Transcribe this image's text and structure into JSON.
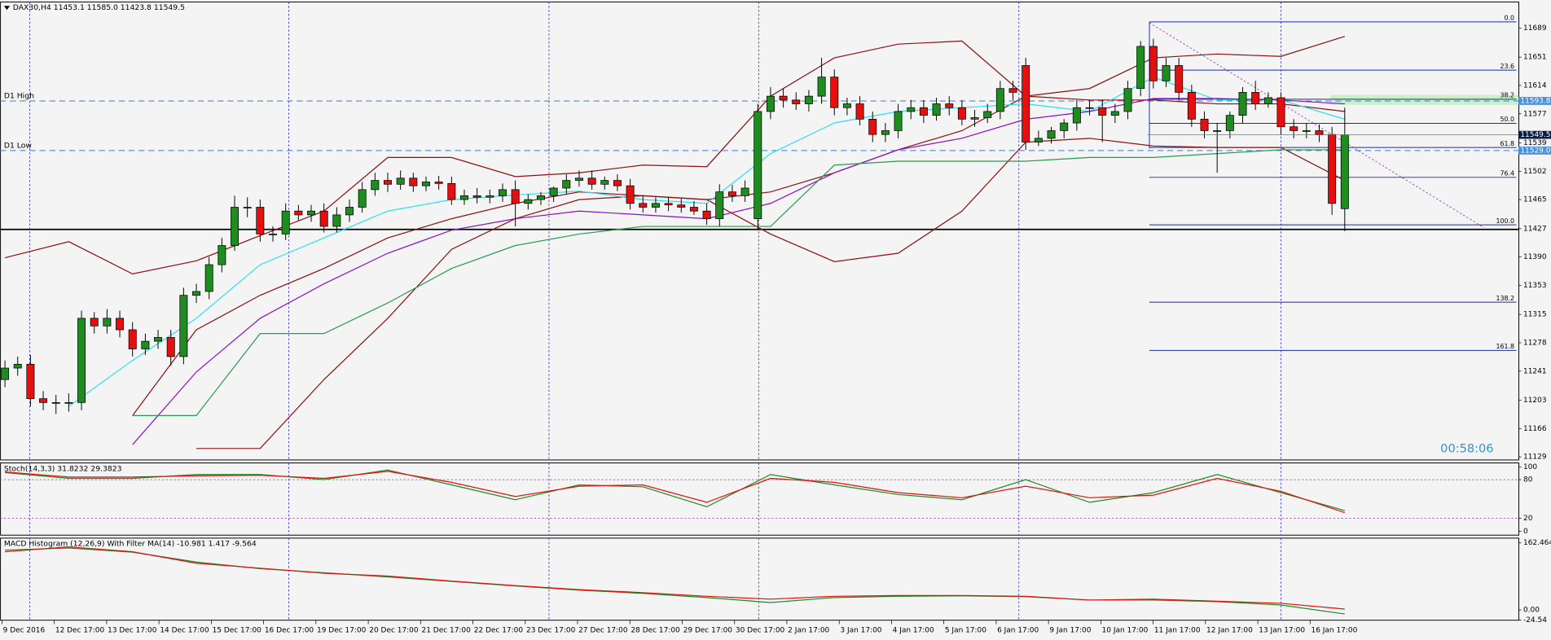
{
  "chart_data": [
    {
      "type": "candlestick",
      "title": "DAX30,H4  11453.1 11585.0 11423.8 11549.5",
      "ylim": [
        11125,
        11723
      ],
      "yticks": [
        11689,
        11651,
        11614,
        11577,
        11539,
        11502,
        11465,
        11427,
        11390,
        11353,
        11315,
        11278,
        11241,
        11203,
        11166,
        11129
      ],
      "up_color": "#1e8c1e",
      "down_color": "#e41010",
      "open": [
        11230,
        11245,
        11250,
        11205,
        11200,
        11200,
        11200,
        11310,
        11300,
        11310,
        11295,
        11270,
        11280,
        11285,
        11260,
        11340,
        11345,
        11380,
        11405,
        11455,
        11455,
        11420,
        11420,
        11450,
        11445,
        11450,
        11430,
        11445,
        11455,
        11478,
        11490,
        11485,
        11493,
        11483,
        11488,
        11486,
        11465,
        11470,
        11468,
        11470,
        11478,
        11460,
        11465,
        11470,
        11480,
        11490,
        11493,
        11485,
        11490,
        11483,
        11460,
        11455,
        11460,
        11458,
        11455,
        11450,
        11440,
        11475,
        11470,
        11440,
        11580,
        11600,
        11595,
        11590,
        11600,
        11625,
        11585,
        11590,
        11570,
        11550,
        11555,
        11580,
        11585,
        11575,
        11590,
        11585,
        11570,
        11572,
        11580,
        11610,
        11640,
        11540,
        11545,
        11555,
        11565,
        11585,
        11585,
        11575,
        11580,
        11610,
        11665,
        11620,
        11640,
        11605,
        11570,
        11555,
        11555,
        11575,
        11605,
        11590,
        11598,
        11560,
        11555,
        11555,
        11550,
        11453.1
      ],
      "high": [
        11255,
        11260,
        11262,
        11215,
        11210,
        11212,
        11320,
        11318,
        11322,
        11320,
        11305,
        11290,
        11295,
        11295,
        11350,
        11355,
        11390,
        11415,
        11470,
        11468,
        11465,
        11430,
        11460,
        11458,
        11458,
        11460,
        11455,
        11465,
        11488,
        11500,
        11500,
        11503,
        11500,
        11495,
        11496,
        11495,
        11478,
        11480,
        11478,
        11486,
        11490,
        11472,
        11475,
        11482,
        11498,
        11503,
        11503,
        11495,
        11498,
        11492,
        11470,
        11468,
        11468,
        11466,
        11463,
        11460,
        11485,
        11484,
        11490,
        11590,
        11612,
        11610,
        11605,
        11608,
        11650,
        11635,
        11598,
        11600,
        11580,
        11565,
        11590,
        11595,
        11595,
        11598,
        11600,
        11595,
        11582,
        11590,
        11620,
        11620,
        11650,
        11555,
        11560,
        11570,
        11595,
        11595,
        11595,
        11590,
        11620,
        11672,
        11675,
        11650,
        11650,
        11615,
        11580,
        11565,
        11580,
        11612,
        11620,
        11605,
        11605,
        11570,
        11565,
        11563,
        11560,
        11585
      ],
      "low": [
        11220,
        11235,
        11195,
        11190,
        11185,
        11188,
        11190,
        11290,
        11290,
        11285,
        11260,
        11262,
        11270,
        11248,
        11250,
        11330,
        11335,
        11370,
        11398,
        11442,
        11410,
        11410,
        11412,
        11438,
        11436,
        11422,
        11422,
        11436,
        11448,
        11470,
        11475,
        11478,
        11475,
        11476,
        11478,
        11458,
        11458,
        11460,
        11460,
        11462,
        11430,
        11452,
        11458,
        11462,
        11472,
        11482,
        11478,
        11478,
        11476,
        11452,
        11448,
        11448,
        11450,
        11448,
        11445,
        11432,
        11430,
        11462,
        11462,
        11425,
        11570,
        11585,
        11582,
        11580,
        11590,
        11575,
        11575,
        11562,
        11540,
        11540,
        11545,
        11570,
        11565,
        11568,
        11575,
        11562,
        11560,
        11565,
        11570,
        11595,
        11530,
        11535,
        11538,
        11545,
        11555,
        11575,
        11540,
        11565,
        11570,
        11600,
        11610,
        11612,
        11595,
        11560,
        11545,
        11500,
        11545,
        11565,
        11582,
        11585,
        11550,
        11545,
        11545,
        11540,
        11445,
        11423.8
      ],
      "close": [
        11245,
        11250,
        11205,
        11200,
        11200,
        11200,
        11310,
        11300,
        11310,
        11295,
        11270,
        11280,
        11285,
        11260,
        11340,
        11345,
        11380,
        11405,
        11455,
        11455,
        11420,
        11420,
        11450,
        11445,
        11450,
        11430,
        11445,
        11455,
        11478,
        11490,
        11485,
        11493,
        11483,
        11488,
        11486,
        11465,
        11470,
        11468,
        11470,
        11478,
        11460,
        11465,
        11470,
        11480,
        11490,
        11493,
        11485,
        11490,
        11483,
        11460,
        11455,
        11460,
        11458,
        11455,
        11450,
        11440,
        11475,
        11470,
        11480,
        11580,
        11600,
        11595,
        11590,
        11600,
        11625,
        11585,
        11590,
        11570,
        11550,
        11555,
        11580,
        11585,
        11575,
        11590,
        11585,
        11570,
        11572,
        11580,
        11610,
        11605,
        11540,
        11545,
        11555,
        11565,
        11585,
        11585,
        11575,
        11580,
        11610,
        11665,
        11620,
        11640,
        11605,
        11570,
        11555,
        11555,
        11575,
        11605,
        11590,
        11598,
        11560,
        11555,
        11555,
        11550,
        11460,
        11549.5
      ],
      "series": [
        {
          "color": "#8b1010",
          "values": [
            11389,
            11410,
            11368,
            11385,
            11418,
            11450,
            11520,
            11520,
            11495,
            11500,
            11510,
            11508,
            11600,
            11650,
            11668,
            11672,
            11600,
            11610,
            11650,
            11655,
            11652,
            11678
          ]
        },
        {
          "color": "#8b1010",
          "values": [
            null,
            null,
            11183,
            11295,
            11340,
            11375,
            11415,
            11440,
            11460,
            11475,
            11470,
            11465,
            11475,
            11500,
            11530,
            11555,
            11600,
            11595,
            11595,
            11590,
            11590,
            11580
          ]
        },
        {
          "color": "#8b1010",
          "values": [
            null,
            null,
            null,
            11140,
            11140,
            11230,
            11310,
            11400,
            11440,
            11465,
            11470,
            11465,
            11420,
            11384,
            11395,
            11450,
            11540,
            11545,
            11535,
            11533,
            11533,
            11490
          ]
        },
        {
          "color": "#2be0f0",
          "values": [
            null,
            11195,
            11255,
            11310,
            11380,
            11415,
            11450,
            11465,
            11471,
            11476,
            11465,
            11460,
            11525,
            11565,
            11580,
            11585,
            11590,
            11580,
            11625,
            11595,
            11595,
            11570
          ]
        },
        {
          "color": "#8a10c8",
          "values": [
            null,
            null,
            11145,
            11240,
            11310,
            11355,
            11395,
            11425,
            11440,
            11450,
            11445,
            11440,
            11460,
            11500,
            11530,
            11545,
            11570,
            11580,
            11597,
            11597,
            11595,
            11590
          ]
        },
        {
          "color": "#2a9a50",
          "values": [
            null,
            null,
            11183,
            11183,
            11290,
            11290,
            11330,
            11375,
            11405,
            11420,
            11430,
            11430,
            11430,
            11510,
            11515,
            11515,
            11515,
            11520,
            11520,
            11525,
            11530,
            11530
          ]
        }
      ],
      "hlines": [
        {
          "label": "D1 High",
          "value": 11593.8,
          "color": "#3a7ad0"
        },
        {
          "label": "D1 Low",
          "value": 11529,
          "value_label": "11529.0",
          "color": "#3a7ad0"
        },
        {
          "value": 11426,
          "color": "#000000"
        }
      ],
      "fib_levels": [
        {
          "label": "0.0",
          "value": 11697
        },
        {
          "label": "23.6",
          "value": 11634
        },
        {
          "label": "38.2",
          "value": 11596
        },
        {
          "label": "50.0",
          "value": 11564.5
        },
        {
          "label": "61.8",
          "value": 11533
        },
        {
          "label": "76.4",
          "value": 11494
        },
        {
          "label": "100.0",
          "value": 11432
        },
        {
          "label": "138.2",
          "value": 11331
        },
        {
          "label": "161.8",
          "value": 11268
        }
      ],
      "clock": "00:58:06"
    },
    {
      "type": "line",
      "title": "Stoch(14,3,3) 31.8232 29.3823",
      "ylim": [
        -6,
        106
      ],
      "yticks": [
        100,
        80,
        20,
        0
      ],
      "levels": [
        80,
        20
      ],
      "series": [
        {
          "color": "#1e8c1e",
          "values": [
            91,
            82,
            82,
            88,
            88,
            80,
            95,
            72,
            49,
            72,
            69,
            38,
            88,
            72,
            57,
            49,
            80,
            45,
            60,
            88,
            60,
            32
          ]
        },
        {
          "color": "#e41010",
          "values": [
            92,
            84,
            84,
            86,
            87,
            82,
            93,
            76,
            54,
            70,
            72,
            45,
            82,
            76,
            60,
            52,
            70,
            52,
            56,
            82,
            62,
            29
          ]
        }
      ]
    },
    {
      "type": "line",
      "title": "MACD Histogram (12,26,9) With Filter MA(14) -10.981 1.417 -9.564",
      "ylim": [
        -25,
        174
      ],
      "yticks": [
        162.464,
        {
          "value": 0,
          "label": "0.00"
        },
        -24.54
      ],
      "series": [
        {
          "color": "#1e8c1e",
          "values": [
            145,
            150,
            140,
            116,
            100,
            90,
            80,
            69,
            58,
            48,
            40,
            30,
            18,
            30,
            33,
            34,
            32,
            24,
            24,
            20,
            12,
            -10
          ]
        },
        {
          "color": "#e41010",
          "values": [
            141,
            153,
            141,
            113,
            101,
            89,
            82,
            70,
            59,
            49,
            42,
            33,
            26,
            33,
            35,
            35,
            33,
            24,
            26,
            21,
            16,
            2
          ]
        }
      ]
    }
  ],
  "time_axis": [
    "9 Dec 2016",
    "12 Dec 17:00",
    "13 Dec 17:00",
    "14 Dec 17:00",
    "15 Dec 17:00",
    "16 Dec 17:00",
    "19 Dec 17:00",
    "20 Dec 17:00",
    "21 Dec 17:00",
    "22 Dec 17:00",
    "23 Dec 17:00",
    "27 Dec 17:00",
    "28 Dec 17:00",
    "29 Dec 17:00",
    "30 Dec 17:00",
    "2 Jan 17:00",
    "3 Jan 17:00",
    "4 Jan 17:00",
    "5 Jan 17:00",
    "6 Jan 17:00",
    "9 Jan 17:00",
    "10 Jan 17:00",
    "11 Jan 17:00",
    "12 Jan 17:00",
    "13 Jan 17:00",
    "16 Jan 17:00"
  ]
}
